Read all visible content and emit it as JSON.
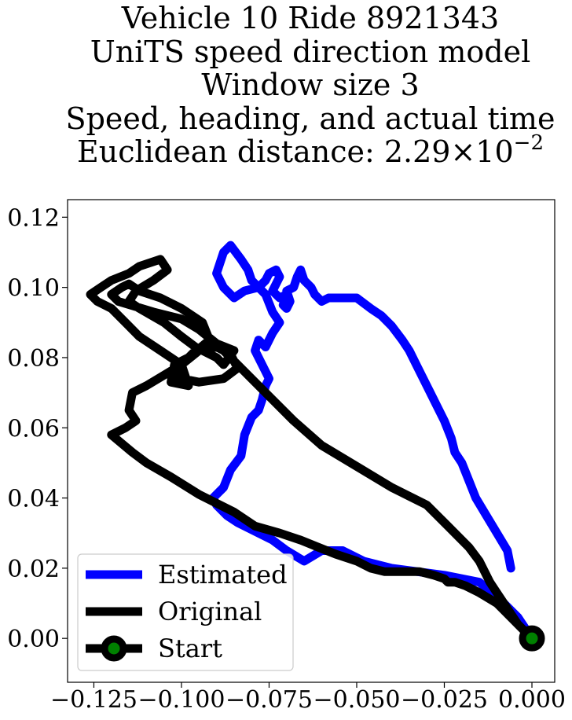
{
  "chart_data": {
    "type": "line",
    "title_lines": [
      "Vehicle 10 Ride 8921343",
      "UniTS speed direction model",
      "Window size 3",
      "Speed, heading, and actual time"
    ],
    "title_last_prefix": "Euclidean distance: 2.29×10",
    "title_last_exponent": "−2",
    "xlabel": "",
    "ylabel": "",
    "xlim": [
      -0.1325,
      0.0065
    ],
    "ylim": [
      -0.0125,
      0.125
    ],
    "xticks": [
      -0.125,
      -0.1,
      -0.075,
      -0.05,
      -0.025,
      0.0
    ],
    "xtick_labels": [
      "−0.125",
      "−0.100",
      "−0.075",
      "−0.050",
      "−0.025",
      "0.000"
    ],
    "yticks": [
      0.0,
      0.02,
      0.04,
      0.06,
      0.08,
      0.1,
      0.12
    ],
    "ytick_labels": [
      "0.00",
      "0.02",
      "0.04",
      "0.06",
      "0.08",
      "0.10",
      "0.12"
    ],
    "grid": false,
    "legend_position": "lower-left",
    "series": [
      {
        "name": "Estimated",
        "color": "#0000ff",
        "x": [
          0.0,
          -0.004,
          -0.008,
          -0.015,
          -0.025,
          -0.04,
          -0.048,
          -0.054,
          -0.06,
          -0.065,
          -0.07,
          -0.074,
          -0.078,
          -0.084,
          -0.087,
          -0.09,
          -0.091,
          -0.088,
          -0.086,
          -0.083,
          -0.082,
          -0.08,
          -0.078,
          -0.077,
          -0.076,
          -0.075,
          -0.077,
          -0.079,
          -0.078,
          -0.076,
          -0.074,
          -0.072,
          -0.074,
          -0.076,
          -0.078,
          -0.08,
          -0.081,
          -0.083,
          -0.086,
          -0.088,
          -0.09,
          -0.088,
          -0.085,
          -0.082,
          -0.078,
          -0.076,
          -0.075,
          -0.073,
          -0.072,
          -0.074,
          -0.072,
          -0.07,
          -0.071,
          -0.07,
          -0.069,
          -0.07,
          -0.068,
          -0.067,
          -0.066,
          -0.065,
          -0.063,
          -0.062,
          -0.06,
          -0.058,
          -0.055,
          -0.05,
          -0.046,
          -0.043,
          -0.04,
          -0.037,
          -0.035,
          -0.033,
          -0.03,
          -0.028,
          -0.025,
          -0.023,
          -0.022,
          -0.02,
          -0.018,
          -0.016,
          -0.013,
          -0.01,
          -0.007,
          -0.006
        ],
        "y": [
          0.0,
          0.006,
          0.01,
          0.016,
          0.018,
          0.02,
          0.022,
          0.025,
          0.025,
          0.022,
          0.025,
          0.028,
          0.03,
          0.033,
          0.035,
          0.038,
          0.04,
          0.043,
          0.048,
          0.052,
          0.058,
          0.063,
          0.065,
          0.068,
          0.072,
          0.074,
          0.078,
          0.082,
          0.085,
          0.083,
          0.087,
          0.09,
          0.093,
          0.098,
          0.1,
          0.102,
          0.105,
          0.108,
          0.112,
          0.11,
          0.104,
          0.1,
          0.097,
          0.099,
          0.1,
          0.102,
          0.104,
          0.105,
          0.103,
          0.099,
          0.097,
          0.098,
          0.095,
          0.094,
          0.096,
          0.099,
          0.1,
          0.103,
          0.105,
          0.102,
          0.1,
          0.098,
          0.096,
          0.097,
          0.097,
          0.097,
          0.094,
          0.092,
          0.089,
          0.085,
          0.082,
          0.078,
          0.072,
          0.068,
          0.062,
          0.057,
          0.053,
          0.05,
          0.045,
          0.04,
          0.035,
          0.03,
          0.025,
          0.02
        ]
      },
      {
        "name": "Original",
        "color": "#000000",
        "x": [
          0.0,
          -0.004,
          -0.008,
          -0.012,
          -0.015,
          -0.018,
          -0.024,
          -0.03,
          -0.04,
          -0.05,
          -0.06,
          -0.068,
          -0.074,
          -0.08,
          -0.085,
          -0.09,
          -0.095,
          -0.1,
          -0.108,
          -0.118,
          -0.12,
          -0.117,
          -0.115,
          -0.112,
          -0.106,
          -0.1,
          -0.094,
          -0.092,
          -0.098,
          -0.102,
          -0.103,
          -0.098,
          -0.1,
          -0.106,
          -0.112,
          -0.116,
          -0.12,
          -0.124,
          -0.126,
          -0.123,
          -0.12,
          -0.115,
          -0.112,
          -0.106,
          -0.104,
          -0.108,
          -0.113,
          -0.115,
          -0.112,
          -0.105,
          -0.1,
          -0.096,
          -0.09,
          -0.088,
          -0.085,
          -0.09,
          -0.095,
          -0.1,
          -0.102,
          -0.1,
          -0.095,
          -0.088,
          -0.084,
          -0.086,
          -0.09,
          -0.096,
          -0.1,
          -0.105,
          -0.11,
          -0.114,
          -0.115,
          -0.113,
          -0.116,
          -0.12,
          -0.114,
          -0.11,
          -0.103,
          -0.095,
          -0.085,
          -0.079,
          -0.072,
          -0.066,
          -0.061,
          -0.056,
          -0.05,
          -0.046,
          -0.042,
          -0.037,
          -0.032,
          -0.028,
          -0.025,
          -0.024,
          -0.022,
          -0.019,
          -0.015,
          -0.01,
          -0.006,
          -0.003,
          0.0
        ],
        "y": [
          0.0,
          0.004,
          0.01,
          0.016,
          0.022,
          0.026,
          0.032,
          0.038,
          0.043,
          0.049,
          0.055,
          0.062,
          0.068,
          0.074,
          0.079,
          0.084,
          0.088,
          0.091,
          0.093,
          0.096,
          0.098,
          0.1,
          0.101,
          0.099,
          0.097,
          0.094,
          0.09,
          0.085,
          0.08,
          0.078,
          0.073,
          0.072,
          0.078,
          0.082,
          0.086,
          0.09,
          0.094,
          0.096,
          0.098,
          0.1,
          0.102,
          0.104,
          0.106,
          0.108,
          0.105,
          0.102,
          0.099,
          0.096,
          0.094,
          0.09,
          0.086,
          0.083,
          0.08,
          0.078,
          0.082,
          0.084,
          0.082,
          0.078,
          0.076,
          0.074,
          0.073,
          0.074,
          0.077,
          0.081,
          0.083,
          0.082,
          0.078,
          0.075,
          0.072,
          0.07,
          0.065,
          0.062,
          0.06,
          0.058,
          0.053,
          0.05,
          0.046,
          0.041,
          0.036,
          0.032,
          0.03,
          0.028,
          0.026,
          0.024,
          0.022,
          0.02,
          0.019,
          0.019,
          0.019,
          0.018,
          0.017,
          0.016,
          0.016,
          0.015,
          0.013,
          0.01,
          0.006,
          0.003,
          0.0
        ]
      }
    ],
    "start": {
      "name": "Start",
      "x": 0.0,
      "y": 0.0,
      "marker_color": "#008000",
      "edge_color": "#000000"
    }
  }
}
